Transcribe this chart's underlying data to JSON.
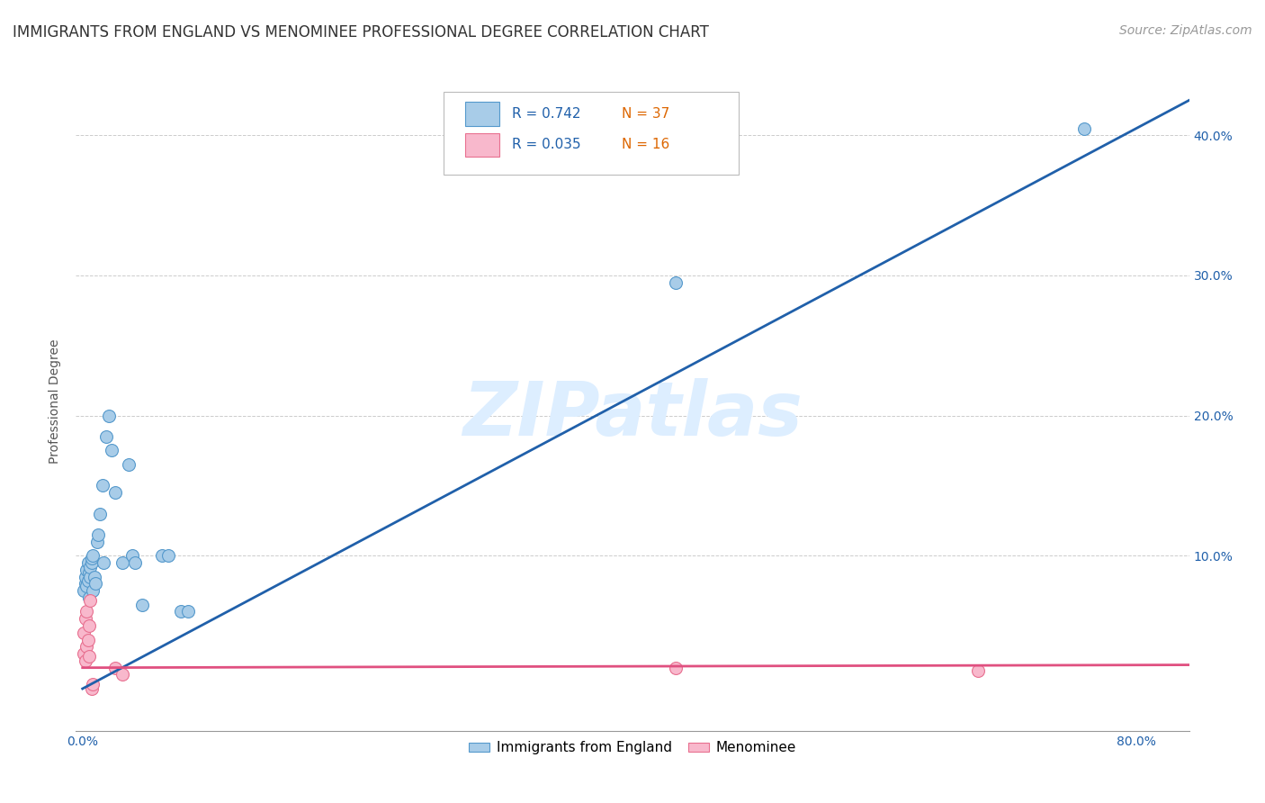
{
  "title": "IMMIGRANTS FROM ENGLAND VS MENOMINEE PROFESSIONAL DEGREE CORRELATION CHART",
  "source": "Source: ZipAtlas.com",
  "ylabel_label": "Professional Degree",
  "x_tick_labels": [
    "0.0%",
    "",
    "",
    "",
    "80.0%"
  ],
  "x_tick_values": [
    0.0,
    0.2,
    0.4,
    0.6,
    0.8
  ],
  "y_tick_labels": [
    "10.0%",
    "20.0%",
    "30.0%",
    "40.0%"
  ],
  "y_tick_values": [
    0.1,
    0.2,
    0.3,
    0.4
  ],
  "xlim": [
    -0.005,
    0.84
  ],
  "ylim": [
    -0.025,
    0.445
  ],
  "blue_R": "0.742",
  "blue_N": "37",
  "pink_R": "0.035",
  "pink_N": "16",
  "legend_label_blue": "Immigrants from England",
  "legend_label_pink": "Menominee",
  "blue_scatter_x": [
    0.001,
    0.002,
    0.002,
    0.003,
    0.003,
    0.004,
    0.004,
    0.005,
    0.005,
    0.006,
    0.006,
    0.007,
    0.007,
    0.008,
    0.008,
    0.009,
    0.01,
    0.011,
    0.012,
    0.013,
    0.015,
    0.016,
    0.018,
    0.02,
    0.022,
    0.025,
    0.03,
    0.035,
    0.038,
    0.04,
    0.045,
    0.06,
    0.065,
    0.075,
    0.08,
    0.45,
    0.76
  ],
  "blue_scatter_y": [
    0.075,
    0.08,
    0.085,
    0.078,
    0.09,
    0.082,
    0.095,
    0.088,
    0.07,
    0.085,
    0.092,
    0.095,
    0.098,
    0.1,
    0.075,
    0.085,
    0.08,
    0.11,
    0.115,
    0.13,
    0.15,
    0.095,
    0.185,
    0.2,
    0.175,
    0.145,
    0.095,
    0.165,
    0.1,
    0.095,
    0.065,
    0.1,
    0.1,
    0.06,
    0.06,
    0.295,
    0.405
  ],
  "pink_scatter_x": [
    0.001,
    0.001,
    0.002,
    0.002,
    0.003,
    0.003,
    0.004,
    0.005,
    0.005,
    0.006,
    0.007,
    0.008,
    0.025,
    0.03,
    0.45,
    0.68
  ],
  "pink_scatter_y": [
    0.045,
    0.03,
    0.025,
    0.055,
    0.035,
    0.06,
    0.04,
    0.028,
    0.05,
    0.068,
    0.005,
    0.008,
    0.02,
    0.015,
    0.02,
    0.018
  ],
  "blue_line_x": [
    0.0,
    0.84
  ],
  "blue_line_y": [
    0.005,
    0.425
  ],
  "pink_line_x": [
    0.0,
    0.84
  ],
  "pink_line_y": [
    0.02,
    0.022
  ],
  "scatter_size": 100,
  "scatter_alpha": 0.5,
  "blue_color": "#a8cce8",
  "blue_edge_color": "#5599cc",
  "blue_line_color": "#2060aa",
  "pink_color": "#f8b8cc",
  "pink_edge_color": "#e87090",
  "pink_line_color": "#e05080",
  "grid_color": "#cccccc",
  "background_color": "#ffffff",
  "title_fontsize": 12,
  "axis_label_fontsize": 10,
  "tick_fontsize": 10,
  "legend_fontsize": 11,
  "source_fontsize": 10,
  "watermark_text": "ZIPatlas",
  "watermark_color": "#ddeeff",
  "watermark_fontsize": 60,
  "legend_text_color_R": "#2060aa",
  "legend_text_color_N": "#dd6600"
}
